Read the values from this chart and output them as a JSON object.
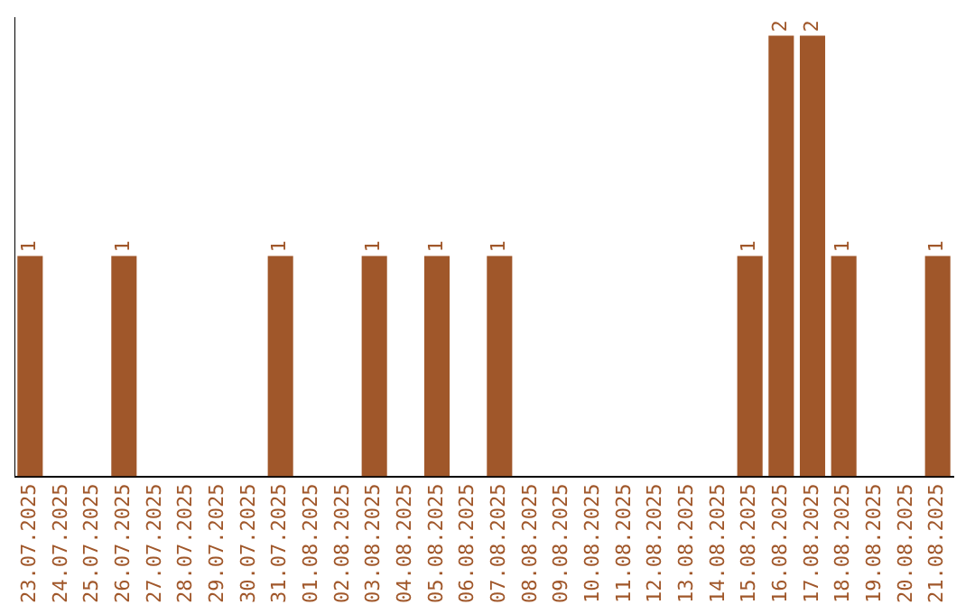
{
  "chart_data": {
    "type": "bar",
    "categories": [
      "23.07.2025",
      "24.07.2025",
      "25.07.2025",
      "26.07.2025",
      "27.07.2025",
      "28.07.2025",
      "29.07.2025",
      "30.07.2025",
      "31.07.2025",
      "01.08.2025",
      "02.08.2025",
      "03.08.2025",
      "04.08.2025",
      "05.08.2025",
      "06.08.2025",
      "07.08.2025",
      "08.08.2025",
      "09.08.2025",
      "10.08.2025",
      "11.08.2025",
      "12.08.2025",
      "13.08.2025",
      "14.08.2025",
      "15.08.2025",
      "16.08.2025",
      "17.08.2025",
      "18.08.2025",
      "19.08.2025",
      "20.08.2025",
      "21.08.2025"
    ],
    "values": [
      1,
      0,
      0,
      1,
      0,
      0,
      0,
      0,
      1,
      0,
      0,
      1,
      0,
      1,
      0,
      1,
      0,
      0,
      0,
      0,
      0,
      0,
      0,
      1,
      2,
      2,
      1,
      0,
      0,
      1
    ],
    "value_labels": [
      "1",
      null,
      null,
      "1",
      null,
      null,
      null,
      null,
      "1",
      null,
      null,
      "1",
      null,
      "1",
      null,
      "1",
      null,
      null,
      null,
      null,
      null,
      null,
      null,
      "1",
      "2",
      "2",
      "1",
      null,
      null,
      "1"
    ],
    "color": "#a0572a",
    "grid": false,
    "legend": false
  }
}
